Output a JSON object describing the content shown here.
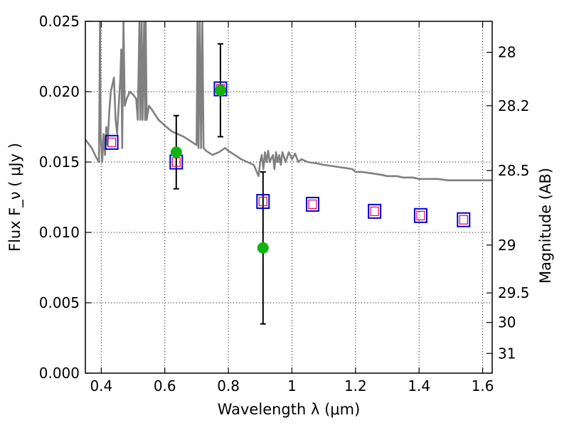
{
  "chart_data": {
    "type": "scatter",
    "xlabel": "Wavelength  λ (μm)",
    "ylabel": "Flux  F_ν  ( μJy )",
    "y2label": "Magnitude (AB)",
    "xlim": [
      0.35,
      1.63
    ],
    "ylim": [
      0.0,
      0.025
    ],
    "grid": true,
    "x_ticks": [
      0.4,
      0.6,
      0.8,
      1.0,
      1.2,
      1.4,
      1.6
    ],
    "x_tick_labels": [
      "0.4",
      "0.6",
      "0.8",
      "1",
      "1.2",
      "1.4",
      "1.6"
    ],
    "y_ticks": [
      0.0,
      0.005,
      0.01,
      0.015,
      0.02,
      0.025
    ],
    "y_tick_labels": [
      "0.000",
      "0.005",
      "0.010",
      "0.015",
      "0.020",
      "0.025"
    ],
    "y2_ticks": [
      {
        "label": "28",
        "flux": 0.0228
      },
      {
        "label": "28.2",
        "flux": 0.019
      },
      {
        "label": "28.5",
        "flux": 0.0144
      },
      {
        "label": "29",
        "flux": 0.0091
      },
      {
        "label": "29.5",
        "flux": 0.0057
      },
      {
        "label": "30",
        "flux": 0.0036
      },
      {
        "label": "31",
        "flux": 0.0014
      }
    ],
    "colors": {
      "model": "#808080",
      "observed": "#11b311",
      "model_box": "#0000cc",
      "model_inner": "#e0005a",
      "errorbar": "#000000"
    },
    "series": [
      {
        "kind": "line",
        "points": [
          [
            0.35,
            0.0166
          ],
          [
            0.37,
            0.016
          ],
          [
            0.385,
            0.0153
          ],
          [
            0.393,
            0.015
          ],
          [
            0.396,
            0.025
          ],
          [
            0.398,
            0.017
          ],
          [
            0.403,
            0.015
          ],
          [
            0.407,
            0.017
          ],
          [
            0.412,
            0.0155
          ],
          [
            0.416,
            0.0175
          ],
          [
            0.42,
            0.0162
          ],
          [
            0.425,
            0.0185
          ],
          [
            0.43,
            0.02
          ],
          [
            0.435,
            0.0205
          ],
          [
            0.44,
            0.021
          ],
          [
            0.445,
            0.018
          ],
          [
            0.45,
            0.017
          ],
          [
            0.455,
            0.019
          ],
          [
            0.46,
            0.021
          ],
          [
            0.463,
            0.023
          ],
          [
            0.466,
            0.016
          ],
          [
            0.47,
            0.025
          ],
          [
            0.474,
            0.019
          ],
          [
            0.48,
            0.0195
          ],
          [
            0.49,
            0.02
          ],
          [
            0.5,
            0.0198
          ],
          [
            0.51,
            0.0195
          ],
          [
            0.515,
            0.018
          ],
          [
            0.52,
            0.025
          ],
          [
            0.523,
            0.018
          ],
          [
            0.527,
            0.025
          ],
          [
            0.53,
            0.018
          ],
          [
            0.535,
            0.025
          ],
          [
            0.538,
            0.018
          ],
          [
            0.54,
            0.025
          ],
          [
            0.543,
            0.018
          ],
          [
            0.55,
            0.019
          ],
          [
            0.56,
            0.0187
          ],
          [
            0.58,
            0.018
          ],
          [
            0.6,
            0.0176
          ],
          [
            0.62,
            0.0172
          ],
          [
            0.64,
            0.017
          ],
          [
            0.66,
            0.0168
          ],
          [
            0.68,
            0.0165
          ],
          [
            0.7,
            0.0162
          ],
          [
            0.703,
            0.025
          ],
          [
            0.706,
            0.016
          ],
          [
            0.71,
            0.025
          ],
          [
            0.714,
            0.016
          ],
          [
            0.718,
            0.025
          ],
          [
            0.722,
            0.016
          ],
          [
            0.73,
            0.0158
          ],
          [
            0.75,
            0.0155
          ],
          [
            0.77,
            0.0157
          ],
          [
            0.79,
            0.016
          ],
          [
            0.8,
            0.0158
          ],
          [
            0.82,
            0.0155
          ],
          [
            0.84,
            0.0152
          ],
          [
            0.86,
            0.015
          ],
          [
            0.88,
            0.0148
          ],
          [
            0.895,
            0.014
          ],
          [
            0.9,
            0.015
          ],
          [
            0.905,
            0.0155
          ],
          [
            0.91,
            0.0145
          ],
          [
            0.915,
            0.0157
          ],
          [
            0.92,
            0.015
          ],
          [
            0.925,
            0.0158
          ],
          [
            0.93,
            0.015
          ],
          [
            0.94,
            0.0155
          ],
          [
            0.945,
            0.0145
          ],
          [
            0.95,
            0.0157
          ],
          [
            0.955,
            0.015
          ],
          [
            0.96,
            0.0155
          ],
          [
            0.965,
            0.0148
          ],
          [
            0.97,
            0.0157
          ],
          [
            0.98,
            0.015
          ],
          [
            0.99,
            0.0157
          ],
          [
            1.0,
            0.0152
          ],
          [
            1.01,
            0.0156
          ],
          [
            1.02,
            0.015
          ],
          [
            1.03,
            0.0152
          ],
          [
            1.05,
            0.015
          ],
          [
            1.08,
            0.0149
          ],
          [
            1.1,
            0.0148
          ],
          [
            1.13,
            0.0147
          ],
          [
            1.16,
            0.0146
          ],
          [
            1.19,
            0.0145
          ],
          [
            1.2,
            0.0143
          ],
          [
            1.22,
            0.0143
          ],
          [
            1.25,
            0.0142
          ],
          [
            1.28,
            0.0141
          ],
          [
            1.3,
            0.014
          ],
          [
            1.33,
            0.014
          ],
          [
            1.35,
            0.0139
          ],
          [
            1.38,
            0.0139
          ],
          [
            1.4,
            0.0138
          ],
          [
            1.43,
            0.0138
          ],
          [
            1.46,
            0.0138
          ],
          [
            1.49,
            0.0137
          ],
          [
            1.52,
            0.0137
          ],
          [
            1.55,
            0.0137
          ],
          [
            1.58,
            0.0137
          ],
          [
            1.6,
            0.0137
          ],
          [
            1.63,
            0.0137
          ]
        ]
      },
      {
        "kind": "observed",
        "points": [
          {
            "x": 0.636,
            "y": 0.0157,
            "err": [
              0.0131,
              0.0183
            ]
          },
          {
            "x": 0.775,
            "y": 0.0201,
            "err": [
              0.0168,
              0.0234
            ]
          },
          {
            "x": 0.909,
            "y": 0.0089,
            "err": [
              0.0035,
              0.0143
            ]
          }
        ]
      },
      {
        "kind": "model_photometry",
        "points": [
          {
            "x": 0.433,
            "y": 0.0164
          },
          {
            "x": 0.636,
            "y": 0.015
          },
          {
            "x": 0.775,
            "y": 0.0202
          },
          {
            "x": 0.909,
            "y": 0.0122
          },
          {
            "x": 1.065,
            "y": 0.012
          },
          {
            "x": 1.26,
            "y": 0.0115
          },
          {
            "x": 1.405,
            "y": 0.0112
          },
          {
            "x": 1.54,
            "y": 0.0109
          }
        ]
      }
    ]
  }
}
